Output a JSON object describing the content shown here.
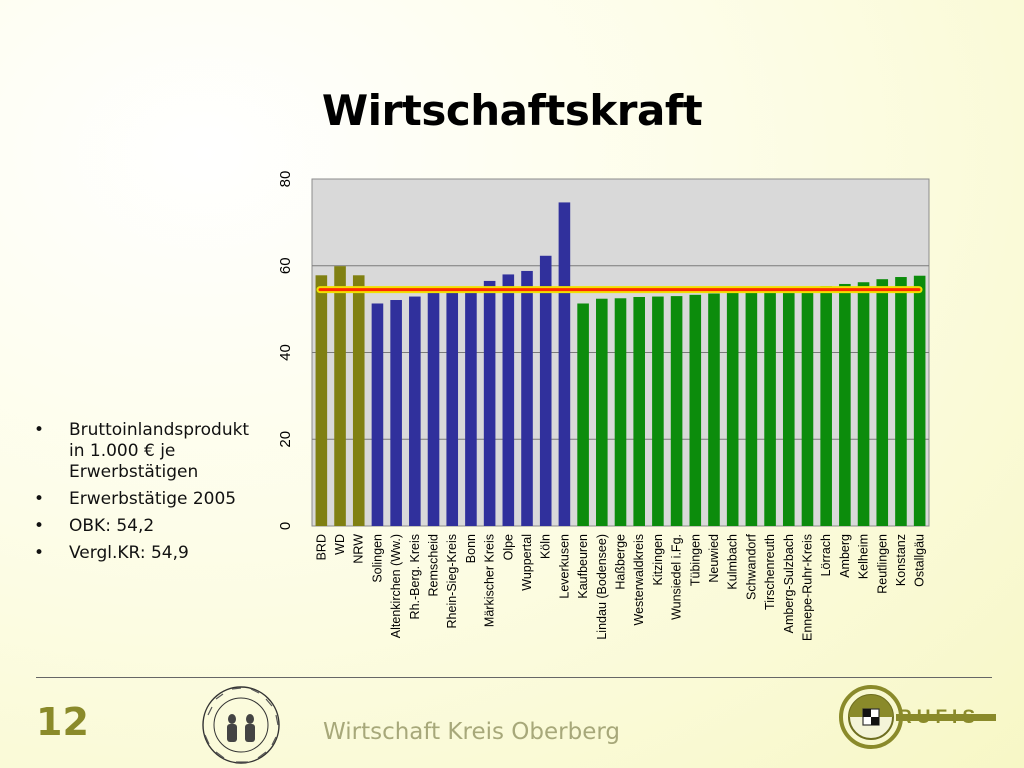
{
  "slide": {
    "title": "Wirtschaftskraft",
    "page_number": "12",
    "footer": "Wirtschaft Kreis Oberberg",
    "logo_text": "RUFIS",
    "seal_text": "BOCHVM · RVHR · VNIVERSITAT"
  },
  "bullets": [
    "Bruttoinlandsprodukt in 1.000 € je Erwerbstätigen",
    "Erwerbstätige 2005",
    "OBK: 54,2",
    "Vergl.KR: 54,9"
  ],
  "colors": {
    "olive": "#808012",
    "blue": "#30309c",
    "green": "#0c8c0c",
    "plot_bg": "#d9d9d9",
    "reference_line": "#ff2a00",
    "reference_glow": "#f2e000"
  },
  "chart_data": {
    "type": "bar",
    "ylim": [
      0,
      80
    ],
    "yticks": [
      0,
      20,
      40,
      60,
      80
    ],
    "grid": true,
    "reference_line": 54.5,
    "categories": [
      "BRD",
      "WD",
      "NRW",
      "Solingen",
      "Altenkirchen (Ww.)",
      "Rh.-Berg. Kreis",
      "Remscheid",
      "Rhein-Sieg-Kreis",
      "Bonn",
      "Märkischer Kreis",
      "Olpe",
      "Wuppertal",
      "Köln",
      "Leverkusen",
      "Kaufbeuren",
      "Lindau (Bodensee)",
      "Haßberge",
      "Westerwaldkreis",
      "Kitzingen",
      "Wunsiedel i.Fg.",
      "Tübingen",
      "Neuwied",
      "Kulmbach",
      "Schwandorf",
      "Tirschenreuth",
      "Amberg-Sulzbach",
      "Ennepe-Ruhr-Kreis",
      "Lörrach",
      "Amberg",
      "Kelheim",
      "Reutlingen",
      "Konstanz",
      "Ostallgäu"
    ],
    "values": [
      57.8,
      59.9,
      57.8,
      51.3,
      52.1,
      52.9,
      54.0,
      54.3,
      54.8,
      56.5,
      58.0,
      58.8,
      62.3,
      74.6,
      51.3,
      52.4,
      52.5,
      52.8,
      52.9,
      53.0,
      53.3,
      53.6,
      54.0,
      54.2,
      54.4,
      54.6,
      54.9,
      55.3,
      55.8,
      56.2,
      56.9,
      57.4,
      57.7
    ],
    "bar_groups": [
      "olive",
      "olive",
      "olive",
      "blue",
      "blue",
      "blue",
      "blue",
      "blue",
      "blue",
      "blue",
      "blue",
      "blue",
      "blue",
      "blue",
      "green",
      "green",
      "green",
      "green",
      "green",
      "green",
      "green",
      "green",
      "green",
      "green",
      "green",
      "green",
      "green",
      "green",
      "green",
      "green",
      "green",
      "green",
      "green"
    ]
  }
}
